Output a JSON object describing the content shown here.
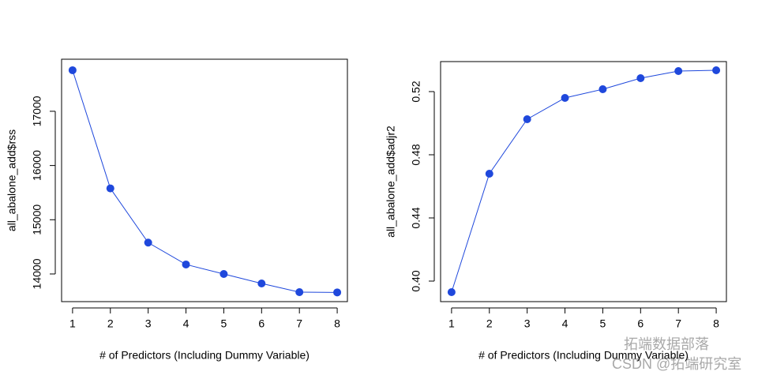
{
  "chart_data": [
    {
      "type": "line",
      "x": [
        1,
        2,
        3,
        4,
        5,
        6,
        7,
        8
      ],
      "series": [
        {
          "name": "all_abalone_add$rss",
          "color": "#1f48dc",
          "values": [
            17757,
            15578,
            14578,
            14175,
            14000,
            13825,
            13665,
            13660
          ]
        }
      ],
      "xlabel": "# of Predictors (Including Dummy Variable)",
      "ylabel": "all_abalone_add$rss",
      "xlim": [
        0.71,
        8.27
      ],
      "xticks": [
        1,
        2,
        3,
        4,
        5,
        6,
        7,
        8
      ],
      "ylim": [
        13490,
        17960
      ],
      "yticks": [
        14000,
        15000,
        16000,
        17000
      ]
    },
    {
      "type": "line",
      "x": [
        1,
        2,
        3,
        4,
        5,
        6,
        7,
        8
      ],
      "series": [
        {
          "name": "all_abalone_add$adjr2",
          "color": "#1f48dc",
          "values": [
            0.393,
            0.468,
            0.5025,
            0.516,
            0.5215,
            0.5285,
            0.533,
            0.5335
          ]
        }
      ],
      "xlabel": "# of Predictors (Including Dummy Variable)",
      "ylabel": "all_abalone_add$adjr2",
      "xlim": [
        0.71,
        8.27
      ],
      "xticks": [
        1,
        2,
        3,
        4,
        5,
        6,
        7,
        8
      ],
      "ylim": [
        0.387,
        0.539
      ],
      "yticks": [
        {
          "value": 0.4,
          "label": "0.40"
        },
        {
          "value": 0.44,
          "label": "0.44"
        },
        {
          "value": 0.48,
          "label": "0.48"
        },
        {
          "value": 0.52,
          "label": "0.52"
        }
      ]
    }
  ],
  "watermark": [
    "拓端数据部落",
    "CSDN @拓端研究室"
  ]
}
